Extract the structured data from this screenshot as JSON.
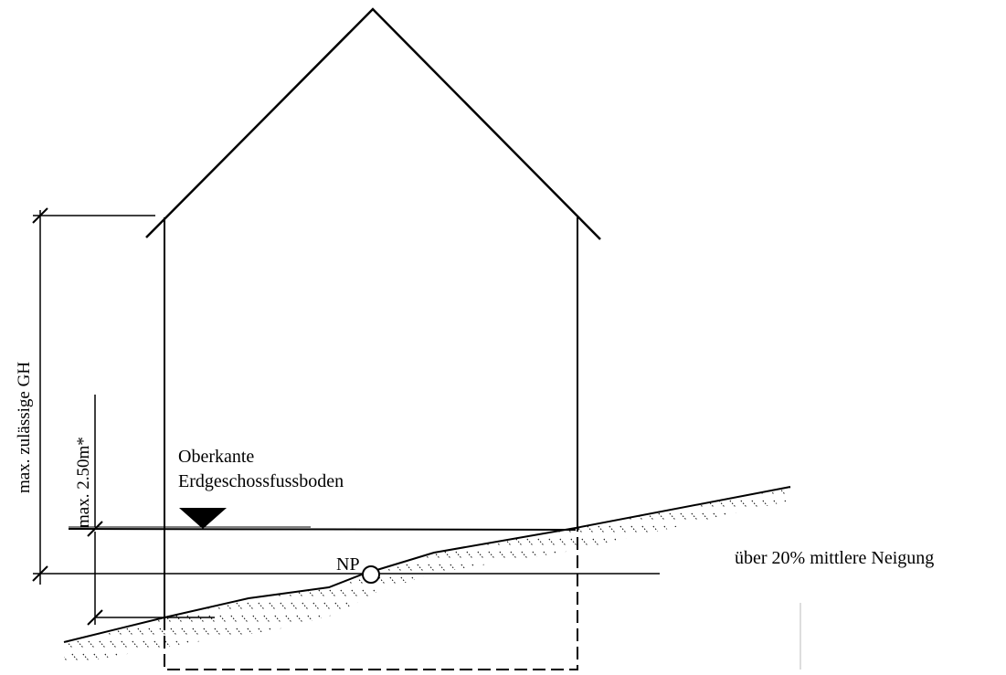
{
  "labels": {
    "oberkante_line1": "Oberkante",
    "oberkante_line2": "Erdgeschossfussboden",
    "np": "NP",
    "slope": "über 20% mittlere Neigung",
    "max_gh": "max. zulässige GH",
    "max_250": "max. 2.50m*"
  },
  "colors": {
    "line": "#000000",
    "background": "#ffffff",
    "hatch": "#000000"
  }
}
